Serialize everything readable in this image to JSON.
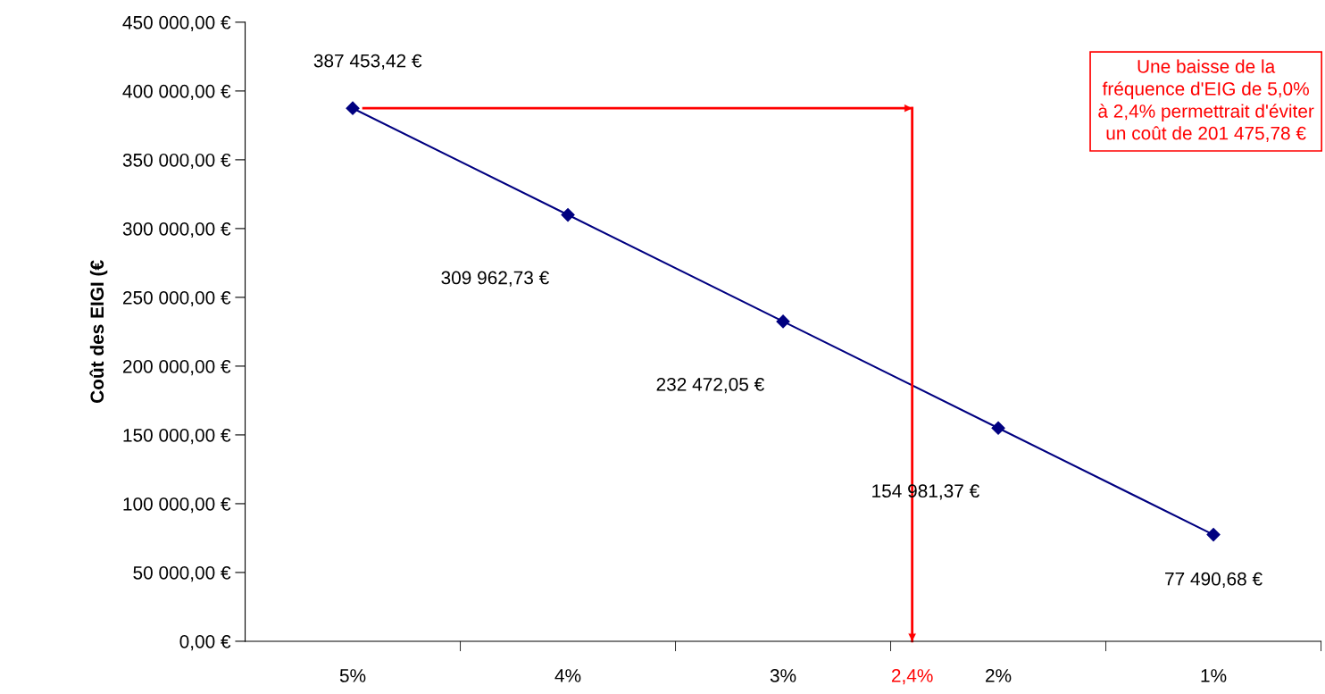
{
  "chart_data": {
    "type": "line",
    "ylabel": "Coût des EIGI (€",
    "x": [
      5,
      4,
      3,
      2,
      1
    ],
    "series": [
      {
        "color": "#000080",
        "values": [
          387453.42,
          309962.73,
          232472.05,
          154981.37,
          77490.68
        ],
        "value_labels": [
          "387 453,42 €",
          "309 962,73 €",
          "232 472,05 €",
          "154 981,37 €",
          "77 490,68 €"
        ]
      }
    ],
    "marker": "diamond",
    "line_style": "solid",
    "grid": false,
    "xlim": [
      5.5,
      0.5
    ],
    "xticks": [
      {
        "value": 5,
        "label": "5%"
      },
      {
        "value": 4,
        "label": "4%"
      },
      {
        "value": 3,
        "label": "3%"
      },
      {
        "value": 2,
        "label": "2%"
      },
      {
        "value": 1,
        "label": "1%"
      }
    ],
    "ylim": [
      0,
      450000
    ],
    "yticks": [
      {
        "value": 0,
        "label": "0,00 €"
      },
      {
        "value": 50000,
        "label": "50 000,00 €"
      },
      {
        "value": 100000,
        "label": "100 000,00 €"
      },
      {
        "value": 150000,
        "label": "150 000,00 €"
      },
      {
        "value": 200000,
        "label": "200 000,00 €"
      },
      {
        "value": 250000,
        "label": "250 000,00 €"
      },
      {
        "value": 300000,
        "label": "300 000,00 €"
      },
      {
        "value": 350000,
        "label": "350 000,00 €"
      },
      {
        "value": 400000,
        "label": "400 000,00 €"
      },
      {
        "value": 450000,
        "label": "450 000,00 €"
      }
    ],
    "ref_lines": [
      {
        "axis": "x",
        "value": 2.4,
        "label": "2,4%",
        "color": "#ff0000"
      },
      {
        "axis": "y",
        "value": 387453.42,
        "color": "#ff0000"
      }
    ],
    "annotations": [
      "Une baisse de la\nfréquence d'EIG de 5,0%\nà 2,4% permettrait d'éviter\nun coût de 201 475,78 €"
    ]
  }
}
